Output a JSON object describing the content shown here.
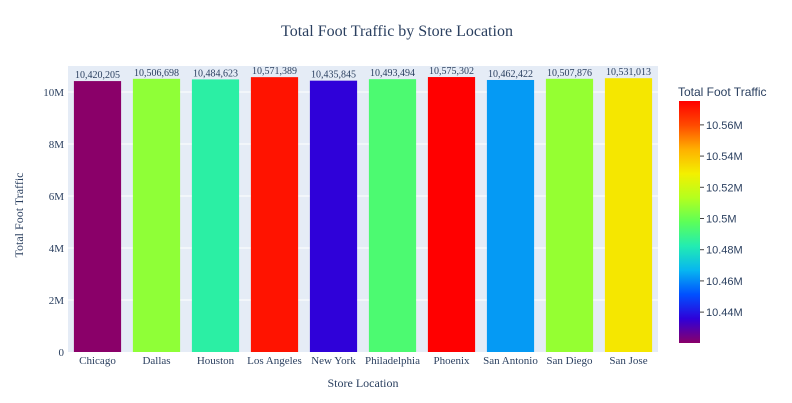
{
  "chart_data": {
    "type": "bar",
    "title": "Total Foot Traffic by Store Location",
    "xlabel": "Store Location",
    "ylabel": "Total Foot Traffic",
    "categories": [
      "Chicago",
      "Dallas",
      "Houston",
      "Los Angeles",
      "New York",
      "Philadelphia",
      "Phoenix",
      "San Antonio",
      "San Diego",
      "San Jose"
    ],
    "values": [
      10420205,
      10506698,
      10484623,
      10571389,
      10435845,
      10493494,
      10575302,
      10462422,
      10507876,
      10531013
    ],
    "value_labels": [
      "10,420,205",
      "10,506,698",
      "10,484,623",
      "10,571,389",
      "10,435,845",
      "10,493,494",
      "10,575,302",
      "10,462,422",
      "10,507,876",
      "10,531,013"
    ],
    "ylim": [
      0,
      11000000
    ],
    "yticks": [
      0,
      2000000,
      4000000,
      6000000,
      8000000,
      10000000
    ],
    "ytick_labels": [
      "0",
      "2M",
      "4M",
      "6M",
      "8M",
      "10M"
    ],
    "colorbar": {
      "title": "Total Foot Traffic",
      "range": [
        10420205,
        10575302
      ],
      "ticks": [
        10440000,
        10460000,
        10480000,
        10500000,
        10520000,
        10540000,
        10560000
      ],
      "tick_labels": [
        "10.44M",
        "10.46M",
        "10.48M",
        "10.5M",
        "10.52M",
        "10.54M",
        "10.56M"
      ],
      "colorscale": [
        "#8a0069",
        "#2f00d9",
        "#0050ff",
        "#07b6f0",
        "#22ecb2",
        "#5cff58",
        "#b4ff1e",
        "#f3f000",
        "#ffb000",
        "#ff4a00",
        "#ff0000"
      ]
    },
    "grid": true,
    "legend": "colorbar-right"
  }
}
